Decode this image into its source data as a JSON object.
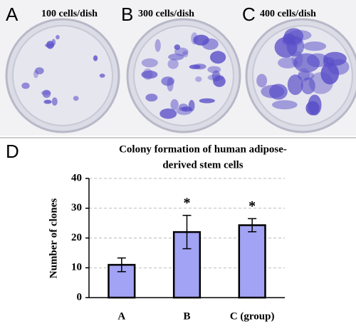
{
  "panels": [
    {
      "label": "A",
      "caption": "100 cells/dish"
    },
    {
      "label": "B",
      "caption": "300 cells/dish"
    },
    {
      "label": "C",
      "caption": "400 cells/dish"
    }
  ],
  "chart_label": "D",
  "chart_data": {
    "type": "bar",
    "title": [
      "Colony formation of human adipose-",
      "derived stem cells"
    ],
    "y_label": "Number of clones",
    "categories": [
      "A",
      "B",
      "C (group)"
    ],
    "values": [
      11,
      22,
      24.3
    ],
    "errors": [
      2.3,
      5.6,
      2.2
    ],
    "significance": [
      null,
      "*",
      "*"
    ],
    "color": "#a3a3f5",
    "ylim": [
      0,
      40
    ],
    "yticks": [
      0,
      10,
      20,
      30,
      40
    ],
    "grid": true
  }
}
